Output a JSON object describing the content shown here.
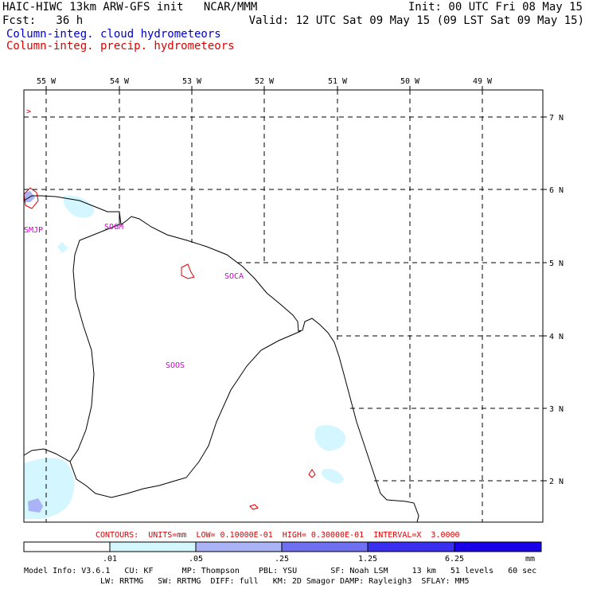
{
  "header": {
    "title": "HAIC-HIWC 13km ARW-GFS init   NCAR/MMM",
    "init": "Init: 00 UTC Fri 08 May 15",
    "fcst": "Fcst:   36 h",
    "valid": "Valid: 12 UTC Sat 09 May 15 (09 LST Sat 09 May 15)",
    "field1": "Column-integ. cloud hydrometeors",
    "field2": "Column-integ. precip. hydrometeors",
    "field1_color": "#0000cc",
    "field2_color": "#dd0000"
  },
  "map": {
    "lon_labels": [
      "55 W",
      "54 W",
      "53 W",
      "52 W",
      "51 W",
      "50 W",
      "49 W"
    ],
    "lat_labels": [
      "7 N",
      "6 N",
      "5 N",
      "4 N",
      "3 N",
      "2 N"
    ],
    "stations": [
      {
        "id": "SMJP"
      },
      {
        "id": "SOGM"
      },
      {
        "id": "SOCA"
      },
      {
        "id": "SOOS"
      }
    ],
    "station_color": "#cc00cc",
    "corner_mark": ">"
  },
  "contours_line": "CONTOURS:  UNITS=mm  LOW= 0.10000E-01  HIGH= 0.30000E-01  INTERVAL=X  3.0000",
  "contours_color": "#dd0000",
  "colorbar": {
    "ticks": [
      ".01",
      ".05",
      ".25",
      "1.25",
      "6.25"
    ],
    "unit": "mm",
    "colors": [
      "#ffffff",
      "#d4f7ff",
      "#a9b3f5",
      "#6f6ff2",
      "#3a2ef0",
      "#1a00e8"
    ]
  },
  "model_info": {
    "line1": "Model Info: V3.6.1   CU: KF      MP: Thompson    PBL: YSU       SF: Noah LSM     13 km   51 levels   60 sec",
    "line2": "LW: RRTMG   SW: RRTMG  DIFF: full   KM: 2D Smagor DAMP: Rayleigh3  SFLAY: MM5"
  }
}
